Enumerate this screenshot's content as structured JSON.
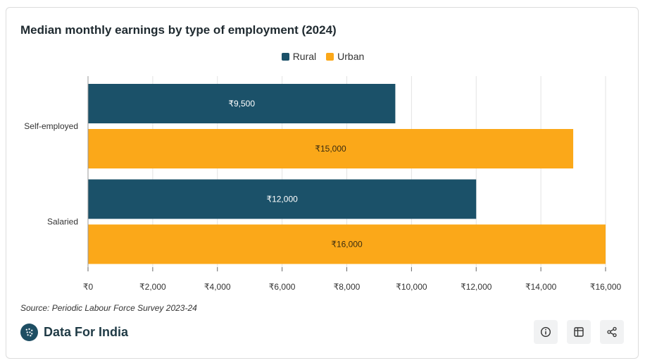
{
  "title": "Median monthly earnings by type of employment (2024)",
  "legend": {
    "rural": "Rural",
    "urban": "Urban"
  },
  "colors": {
    "rural": "#1b5169",
    "urban": "#fba819",
    "grid": "#e3e3e3"
  },
  "source": "Source: Periodic Labour Force Survey 2023-24",
  "brand": {
    "name": "Data For India"
  },
  "actions": {
    "info": "info-icon",
    "table": "table-icon",
    "share": "share-icon"
  },
  "chart_data": {
    "type": "bar",
    "orientation": "horizontal",
    "categories": [
      "Self-employed",
      "Salaried"
    ],
    "series": [
      {
        "name": "Rural",
        "values": [
          9500,
          12000
        ],
        "labels": [
          "₹9,500",
          "₹12,000"
        ]
      },
      {
        "name": "Urban",
        "values": [
          15000,
          16000
        ],
        "labels": [
          "₹15,000",
          "₹16,000"
        ]
      }
    ],
    "xlim": [
      0,
      16000
    ],
    "xticks": [
      0,
      2000,
      4000,
      6000,
      8000,
      10000,
      12000,
      14000,
      16000
    ],
    "xtick_labels": [
      "₹0",
      "₹2,000",
      "₹4,000",
      "₹6,000",
      "₹8,000",
      "₹10,000",
      "₹12,000",
      "₹14,000",
      "₹16,000"
    ],
    "grid": true,
    "legend_position": "top-center"
  }
}
